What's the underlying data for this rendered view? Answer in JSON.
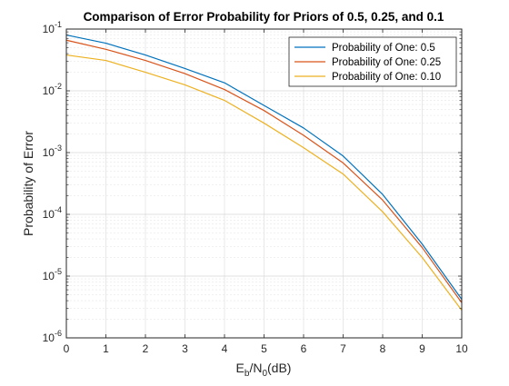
{
  "chart_data": {
    "type": "line",
    "title": "Comparison of Error Probability for Priors of 0.5, 0.25, and 0.1",
    "xlabel": {
      "base": "E",
      "sub1": "b",
      "mid": "/N",
      "sub2": "0",
      "tail": "(dB)"
    },
    "ylabel": "Probability of Error",
    "x": [
      0,
      1,
      2,
      3,
      4,
      5,
      6,
      7,
      8,
      9,
      10
    ],
    "xlim": [
      0,
      10
    ],
    "ylim": [
      1e-06,
      0.1
    ],
    "yscale": "log",
    "grid": true,
    "minor_grid": true,
    "legend_position": "top-right",
    "x_ticks": [
      0,
      1,
      2,
      3,
      4,
      5,
      6,
      7,
      8,
      9,
      10
    ],
    "y_ticks": [
      {
        "value": 1e-06,
        "exp": "-6"
      },
      {
        "value": 1e-05,
        "exp": "-5"
      },
      {
        "value": 0.0001,
        "exp": "-4"
      },
      {
        "value": 0.001,
        "exp": "-3"
      },
      {
        "value": 0.01,
        "exp": "-2"
      },
      {
        "value": 0.1,
        "exp": "-1"
      }
    ],
    "y_tick_base": "10",
    "series": [
      {
        "name": "Probability of One: 0.5",
        "color": "#0072BD",
        "values": [
          0.08,
          0.059,
          0.038,
          0.023,
          0.0135,
          0.0058,
          0.0025,
          0.00088,
          0.00021,
          3.3e-05,
          4.2e-06
        ]
      },
      {
        "name": "Probability of One: 0.25",
        "color": "#D95319",
        "values": [
          0.066,
          0.047,
          0.031,
          0.019,
          0.0105,
          0.0048,
          0.0019,
          0.00068,
          0.00017,
          2.9e-05,
          3.7e-06
        ]
      },
      {
        "name": "Probability of One: 0.10",
        "color": "#EDB120",
        "values": [
          0.038,
          0.031,
          0.02,
          0.0125,
          0.007,
          0.003,
          0.0012,
          0.00045,
          0.00011,
          2e-05,
          2.8e-06
        ]
      }
    ]
  }
}
